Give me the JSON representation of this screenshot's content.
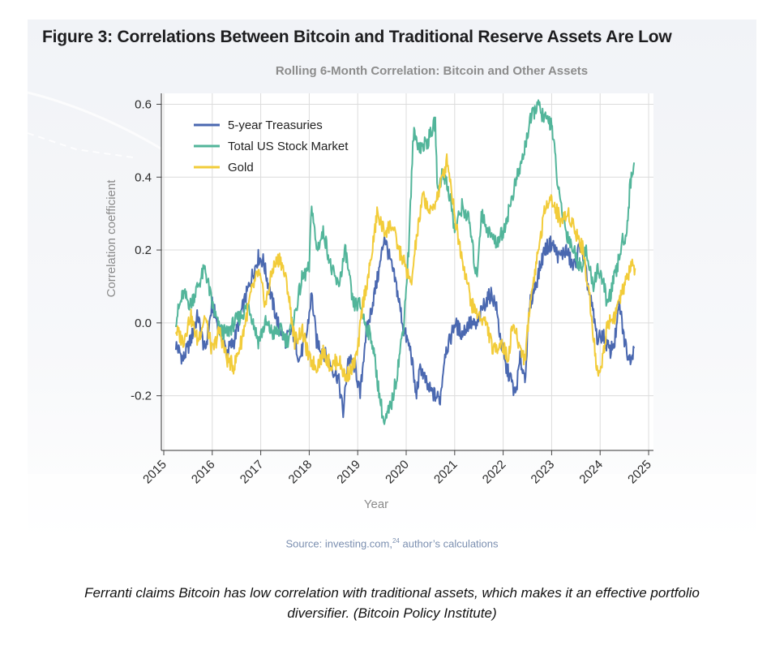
{
  "figure": {
    "title": "Figure 3: Correlations Between Bitcoin and Traditional Reserve Assets Are Low",
    "source_text": "Source: investing.com,",
    "source_sup": "24",
    "source_tail": " author’s calculations"
  },
  "caption": {
    "line1": "Ferranti claims Bitcoin has low correlation with traditional assets, which makes it an effective portfolio",
    "line2": "diversifier. (Bitcoin Policy Institute)"
  },
  "chart_data": {
    "type": "line",
    "title": "Rolling 6-Month Correlation: Bitcoin and Other Assets",
    "xlabel": "Year",
    "ylabel": "Correlation coefficient",
    "xlim": [
      2014.95,
      2025.1
    ],
    "ylim": [
      -0.35,
      0.63
    ],
    "x_ticks": [
      2015,
      2016,
      2017,
      2018,
      2019,
      2020,
      2021,
      2022,
      2023,
      2024,
      2025
    ],
    "x_tick_labels": [
      "2015",
      "2016",
      "2017",
      "2018",
      "2019",
      "2020",
      "2021",
      "2022",
      "2023",
      "2024",
      "2025"
    ],
    "y_ticks": [
      -0.2,
      0.0,
      0.2,
      0.4,
      0.6
    ],
    "y_tick_labels": [
      "-0.2",
      "0.0",
      "0.2",
      "0.4",
      "0.6"
    ],
    "grid": true,
    "legend_position": "top-left",
    "series": [
      {
        "name": "5-year Treasuries",
        "color": "#4a68b0",
        "points": [
          [
            2015.25,
            -0.06
          ],
          [
            2015.4,
            -0.1
          ],
          [
            2015.55,
            -0.05
          ],
          [
            2015.7,
            0.02
          ],
          [
            2015.85,
            -0.08
          ],
          [
            2016.0,
            0.05
          ],
          [
            2016.15,
            -0.02
          ],
          [
            2016.3,
            -0.08
          ],
          [
            2016.45,
            -0.05
          ],
          [
            2016.6,
            0.03
          ],
          [
            2016.8,
            0.12
          ],
          [
            2016.95,
            0.18
          ],
          [
            2017.05,
            0.17
          ],
          [
            2017.2,
            0.08
          ],
          [
            2017.35,
            0.0
          ],
          [
            2017.5,
            -0.05
          ],
          [
            2017.65,
            -0.02
          ],
          [
            2017.8,
            -0.1
          ],
          [
            2017.95,
            -0.03
          ],
          [
            2018.05,
            0.08
          ],
          [
            2018.15,
            -0.05
          ],
          [
            2018.3,
            -0.08
          ],
          [
            2018.45,
            -0.12
          ],
          [
            2018.6,
            -0.15
          ],
          [
            2018.7,
            -0.25
          ],
          [
            2018.8,
            -0.1
          ],
          [
            2018.95,
            -0.12
          ],
          [
            2019.05,
            -0.2
          ],
          [
            2019.15,
            -0.05
          ],
          [
            2019.3,
            0.05
          ],
          [
            2019.45,
            0.15
          ],
          [
            2019.55,
            0.24
          ],
          [
            2019.65,
            0.18
          ],
          [
            2019.8,
            0.1
          ],
          [
            2019.95,
            -0.02
          ],
          [
            2020.1,
            -0.08
          ],
          [
            2020.2,
            -0.2
          ],
          [
            2020.3,
            -0.12
          ],
          [
            2020.45,
            -0.18
          ],
          [
            2020.6,
            -0.2
          ],
          [
            2020.7,
            -0.21
          ],
          [
            2020.8,
            -0.08
          ],
          [
            2020.9,
            -0.05
          ],
          [
            2021.0,
            0.0
          ],
          [
            2021.15,
            -0.03
          ],
          [
            2021.3,
            0.0
          ],
          [
            2021.45,
            -0.01
          ],
          [
            2021.6,
            0.05
          ],
          [
            2021.75,
            0.08
          ],
          [
            2021.85,
            0.05
          ],
          [
            2021.95,
            -0.05
          ],
          [
            2022.05,
            -0.12
          ],
          [
            2022.15,
            -0.15
          ],
          [
            2022.25,
            -0.2
          ],
          [
            2022.35,
            -0.1
          ],
          [
            2022.45,
            -0.15
          ],
          [
            2022.55,
            0.05
          ],
          [
            2022.7,
            0.12
          ],
          [
            2022.85,
            0.2
          ],
          [
            2023.0,
            0.22
          ],
          [
            2023.15,
            0.18
          ],
          [
            2023.3,
            0.2
          ],
          [
            2023.45,
            0.15
          ],
          [
            2023.6,
            0.22
          ],
          [
            2023.75,
            0.1
          ],
          [
            2023.85,
            0.03
          ],
          [
            2023.95,
            -0.05
          ],
          [
            2024.05,
            -0.03
          ],
          [
            2024.2,
            -0.08
          ],
          [
            2024.3,
            -0.05
          ],
          [
            2024.4,
            0.05
          ],
          [
            2024.5,
            -0.05
          ],
          [
            2024.6,
            -0.1
          ],
          [
            2024.7,
            -0.07
          ]
        ]
      },
      {
        "name": "Total US Stock Market",
        "color": "#52b59a",
        "points": [
          [
            2015.25,
            0.01
          ],
          [
            2015.4,
            0.08
          ],
          [
            2015.55,
            0.05
          ],
          [
            2015.7,
            0.1
          ],
          [
            2015.85,
            0.15
          ],
          [
            2016.0,
            0.05
          ],
          [
            2016.15,
            -0.02
          ],
          [
            2016.3,
            -0.03
          ],
          [
            2016.45,
            0.0
          ],
          [
            2016.6,
            0.02
          ],
          [
            2016.75,
            0.05
          ],
          [
            2016.95,
            -0.05
          ],
          [
            2017.1,
            0.0
          ],
          [
            2017.25,
            -0.03
          ],
          [
            2017.4,
            -0.02
          ],
          [
            2017.55,
            -0.05
          ],
          [
            2017.7,
            0.02
          ],
          [
            2017.85,
            0.12
          ],
          [
            2018.0,
            0.15
          ],
          [
            2018.05,
            0.33
          ],
          [
            2018.15,
            0.2
          ],
          [
            2018.3,
            0.25
          ],
          [
            2018.45,
            0.15
          ],
          [
            2018.6,
            0.1
          ],
          [
            2018.75,
            0.2
          ],
          [
            2018.9,
            0.05
          ],
          [
            2019.05,
            0.05
          ],
          [
            2019.15,
            0.0
          ],
          [
            2019.3,
            -0.05
          ],
          [
            2019.45,
            -0.2
          ],
          [
            2019.55,
            -0.28
          ],
          [
            2019.7,
            -0.22
          ],
          [
            2019.8,
            -0.15
          ],
          [
            2019.95,
            0.0
          ],
          [
            2020.05,
            0.2
          ],
          [
            2020.15,
            0.52
          ],
          [
            2020.3,
            0.48
          ],
          [
            2020.45,
            0.5
          ],
          [
            2020.6,
            0.55
          ],
          [
            2020.65,
            0.35
          ],
          [
            2020.75,
            0.42
          ],
          [
            2020.9,
            0.35
          ],
          [
            2021.0,
            0.25
          ],
          [
            2021.15,
            0.32
          ],
          [
            2021.3,
            0.28
          ],
          [
            2021.45,
            0.12
          ],
          [
            2021.55,
            0.3
          ],
          [
            2021.7,
            0.25
          ],
          [
            2021.85,
            0.22
          ],
          [
            2022.0,
            0.25
          ],
          [
            2022.1,
            0.3
          ],
          [
            2022.25,
            0.38
          ],
          [
            2022.4,
            0.45
          ],
          [
            2022.55,
            0.55
          ],
          [
            2022.7,
            0.6
          ],
          [
            2022.85,
            0.56
          ],
          [
            2023.0,
            0.55
          ],
          [
            2023.15,
            0.35
          ],
          [
            2023.3,
            0.25
          ],
          [
            2023.45,
            0.2
          ],
          [
            2023.6,
            0.15
          ],
          [
            2023.7,
            0.2
          ],
          [
            2023.85,
            0.1
          ],
          [
            2023.95,
            0.15
          ],
          [
            2024.05,
            0.12
          ],
          [
            2024.15,
            0.05
          ],
          [
            2024.25,
            0.1
          ],
          [
            2024.35,
            0.15
          ],
          [
            2024.45,
            0.22
          ],
          [
            2024.55,
            0.25
          ],
          [
            2024.62,
            0.38
          ],
          [
            2024.7,
            0.44
          ]
        ]
      },
      {
        "name": "Gold",
        "color": "#f2cc3a",
        "points": [
          [
            2015.25,
            -0.02
          ],
          [
            2015.4,
            -0.05
          ],
          [
            2015.55,
            0.02
          ],
          [
            2015.7,
            -0.05
          ],
          [
            2015.85,
            0.02
          ],
          [
            2016.0,
            -0.08
          ],
          [
            2016.15,
            -0.02
          ],
          [
            2016.3,
            -0.1
          ],
          [
            2016.45,
            -0.12
          ],
          [
            2016.6,
            -0.05
          ],
          [
            2016.8,
            0.08
          ],
          [
            2016.95,
            0.14
          ],
          [
            2017.1,
            0.05
          ],
          [
            2017.25,
            0.15
          ],
          [
            2017.4,
            0.18
          ],
          [
            2017.55,
            0.1
          ],
          [
            2017.7,
            -0.05
          ],
          [
            2017.85,
            -0.02
          ],
          [
            2018.0,
            -0.1
          ],
          [
            2018.15,
            -0.12
          ],
          [
            2018.3,
            -0.08
          ],
          [
            2018.45,
            -0.12
          ],
          [
            2018.6,
            -0.1
          ],
          [
            2018.75,
            -0.15
          ],
          [
            2018.9,
            -0.12
          ],
          [
            2019.0,
            -0.08
          ],
          [
            2019.1,
            0.05
          ],
          [
            2019.25,
            0.15
          ],
          [
            2019.4,
            0.3
          ],
          [
            2019.55,
            0.25
          ],
          [
            2019.7,
            0.27
          ],
          [
            2019.85,
            0.2
          ],
          [
            2020.0,
            0.15
          ],
          [
            2020.1,
            0.1
          ],
          [
            2020.2,
            0.22
          ],
          [
            2020.35,
            0.35
          ],
          [
            2020.5,
            0.3
          ],
          [
            2020.65,
            0.35
          ],
          [
            2020.75,
            0.4
          ],
          [
            2020.85,
            0.45
          ],
          [
            2020.95,
            0.35
          ],
          [
            2021.05,
            0.25
          ],
          [
            2021.2,
            0.15
          ],
          [
            2021.35,
            0.05
          ],
          [
            2021.5,
            0.02
          ],
          [
            2021.65,
            0.0
          ],
          [
            2021.8,
            -0.08
          ],
          [
            2021.95,
            -0.05
          ],
          [
            2022.1,
            -0.1
          ],
          [
            2022.2,
            0.0
          ],
          [
            2022.3,
            -0.05
          ],
          [
            2022.45,
            -0.1
          ],
          [
            2022.55,
            0.05
          ],
          [
            2022.7,
            0.18
          ],
          [
            2022.85,
            0.3
          ],
          [
            2022.95,
            0.35
          ],
          [
            2023.05,
            0.32
          ],
          [
            2023.2,
            0.28
          ],
          [
            2023.35,
            0.3
          ],
          [
            2023.5,
            0.25
          ],
          [
            2023.65,
            0.2
          ],
          [
            2023.8,
            0.05
          ],
          [
            2023.95,
            -0.15
          ],
          [
            2024.05,
            -0.1
          ],
          [
            2024.15,
            0.0
          ],
          [
            2024.3,
            0.02
          ],
          [
            2024.45,
            0.08
          ],
          [
            2024.55,
            0.12
          ],
          [
            2024.65,
            0.16
          ],
          [
            2024.72,
            0.15
          ]
        ]
      }
    ]
  }
}
